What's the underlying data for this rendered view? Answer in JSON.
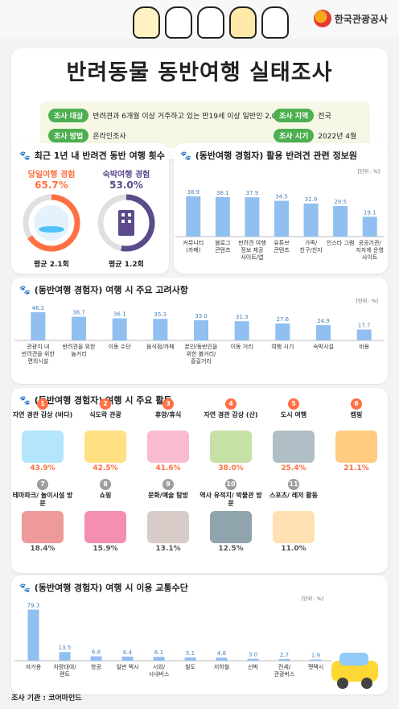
{
  "brand": "한국관광공사",
  "title": "반려동물 동반여행 실태조사",
  "meta": {
    "target_tag": "조사 대상",
    "target": "반려견과 6개월 이상 거주하고 있는 만19세 이상 일반인 2,006명",
    "region_tag": "조사 지역",
    "region": "전국",
    "method_tag": "조사 방법",
    "method": "온라인조사",
    "period_tag": "조사 시기",
    "period": "2022년 4월"
  },
  "sections": {
    "trips": "최근 1년 내 반려견 동반 여행 횟수",
    "sources": "(동반여행 경험자) 활용 반려견 관련 정보원",
    "considerations": "(동반여행 경험자) 여행 시 주요 고려사항",
    "activities": "(동반여행 경험자) 여행 시 주요 활동",
    "transport": "(동반여행 경험자) 여행 시 이용 교통수단"
  },
  "unit": "[단위 : %]",
  "rings": [
    {
      "label": "당일여행 경험",
      "pct": "65.7%",
      "value": 65.7,
      "avg": "평균 2.1회",
      "color": "#ff7043"
    },
    {
      "label": "숙박여행 경험",
      "pct": "53.0%",
      "value": 53.0,
      "avg": "평균 1.2회",
      "color": "#5c4b8b"
    }
  ],
  "activities": [
    {
      "num": "1",
      "name": "자연 경관 감상 (바다)",
      "pct": "43.9%",
      "color": "#ff7043",
      "icon": "beach-icon"
    },
    {
      "num": "2",
      "name": "식도락 관광",
      "pct": "42.5%",
      "color": "#ff7043",
      "icon": "dining-icon"
    },
    {
      "num": "3",
      "name": "휴양/휴식",
      "pct": "41.6%",
      "color": "#ff7043",
      "icon": "rest-icon"
    },
    {
      "num": "4",
      "name": "자연 경관 감상 (산)",
      "pct": "38.0%",
      "color": "#ff7043",
      "icon": "mountain-icon"
    },
    {
      "num": "5",
      "name": "도시 여행",
      "pct": "25.4%",
      "color": "#ff7043",
      "icon": "city-icon"
    },
    {
      "num": "6",
      "name": "캠핑",
      "pct": "21.1%",
      "color": "#ff7043",
      "icon": "tent-icon"
    },
    {
      "num": "7",
      "name": "테마파크/ 놀이시설 방문",
      "pct": "18.4%",
      "color": "#9e9e9e",
      "icon": "ferris-wheel-icon"
    },
    {
      "num": "8",
      "name": "쇼핑",
      "pct": "15.9%",
      "color": "#9e9e9e",
      "icon": "shopping-bag-icon"
    },
    {
      "num": "9",
      "name": "문화/예술 탐방",
      "pct": "13.1%",
      "color": "#9e9e9e",
      "icon": "art-icon"
    },
    {
      "num": "10",
      "name": "역사 유적지/ 박물관 방문",
      "pct": "12.5%",
      "color": "#9e9e9e",
      "icon": "palace-icon"
    },
    {
      "num": "11",
      "name": "스포츠/ 레저 활동",
      "pct": "11.0%",
      "color": "#9e9e9e",
      "icon": "surfboard-icon"
    }
  ],
  "survey_org": "조사 기관 : 코어마인드",
  "chart_data": [
    {
      "type": "bar",
      "categories": [
        "커뮤니티 (카페)",
        "블로그 콘텐츠",
        "반려견 여행 정보 제공 사이트/앱",
        "유튜브 콘텐츠",
        "가족/ 친구/친지",
        "인스타 그램",
        "공공기관/ 지자체 운영 사이트"
      ],
      "values": [
        38.9,
        38.1,
        37.9,
        34.5,
        31.9,
        29.5,
        19.1
      ],
      "ylim": [
        0,
        45
      ]
    },
    {
      "type": "bar",
      "categories": [
        "관광지 내 반려견을 위한 편의시설",
        "반려견을 위한 놀거리",
        "이동 수단",
        "음식점/카페",
        "본인/동반인을 위한 볼거리/ 즐길거리",
        "이동 거리",
        "여행 시기",
        "숙박시설",
        "비용"
      ],
      "values": [
        46.2,
        38.7,
        36.1,
        35.3,
        33.0,
        31.3,
        27.6,
        24.9,
        17.7
      ],
      "ylim": [
        0,
        50
      ]
    },
    {
      "type": "bar",
      "categories": [
        "자가용",
        "차량대여/ 렌트",
        "항공",
        "일반 택시",
        "시외/ 시내버스",
        "철도",
        "지하철",
        "선박",
        "전세/ 관광버스",
        "펫택시"
      ],
      "values": [
        79.3,
        13.5,
        6.8,
        6.4,
        6.1,
        5.1,
        4.8,
        3.0,
        2.7,
        1.9
      ],
      "ylim": [
        0,
        85
      ]
    }
  ]
}
